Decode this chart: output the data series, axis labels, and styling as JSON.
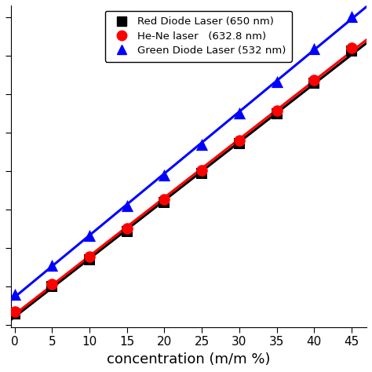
{
  "title": "",
  "xlabel": "concentration (m/m %)",
  "ylabel": "",
  "x_data": [
    0,
    5,
    10,
    15,
    20,
    25,
    30,
    35,
    40,
    45
  ],
  "red_diode_y": [
    1.333,
    1.34,
    1.347,
    1.3544,
    1.3619,
    1.3694,
    1.3771,
    1.3849,
    1.3929,
    1.4011
  ],
  "hene_y": [
    1.3336,
    1.3406,
    1.3478,
    1.3551,
    1.3626,
    1.3702,
    1.3779,
    1.3857,
    1.3937,
    1.4019
  ],
  "green_diode_y": [
    1.338,
    1.3455,
    1.3532,
    1.361,
    1.3689,
    1.3769,
    1.3851,
    1.3933,
    1.4017,
    1.4102
  ],
  "red_diode_color": "#000000",
  "hene_color": "#ff0000",
  "green_diode_color": "#0000ff",
  "red_diode_label": "Red Diode Laser (650 nm)",
  "hene_label": "He-Ne laser   (632.8 nm)",
  "green_diode_label": "Green Diode Laser (532 nm)",
  "xlim": [
    -0.5,
    47
  ],
  "ylim_min": 1.3295,
  "ylim_max": 1.413,
  "fig_bg": "#ffffff",
  "marker_size_sq": 90,
  "marker_size_circ": 110,
  "marker_size_tri": 120,
  "line_width": 2.2,
  "xlabel_fontsize": 13,
  "tick_fontsize": 11
}
